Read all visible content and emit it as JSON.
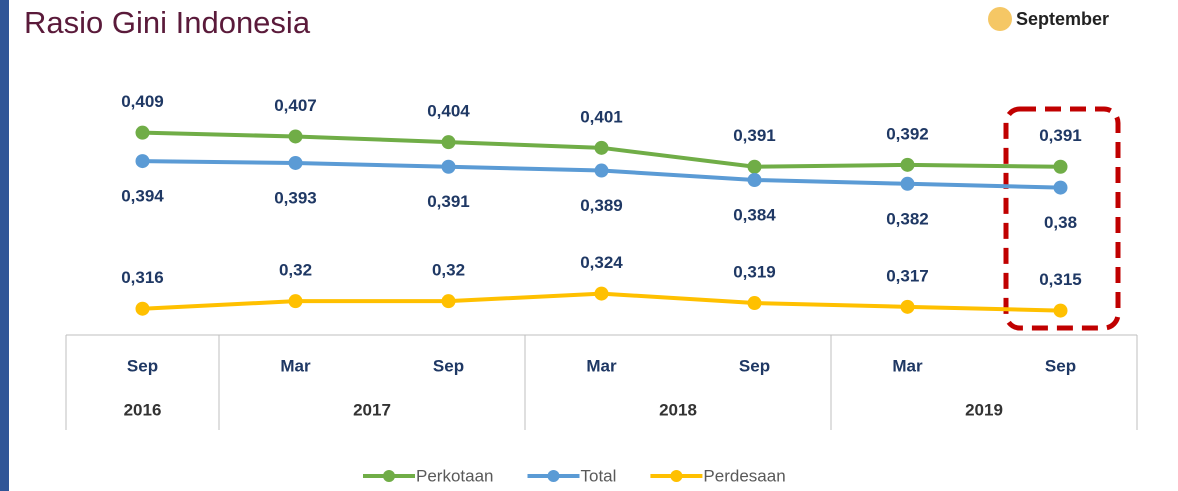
{
  "title": "Rasio Gini Indonesia",
  "period_legend": "September",
  "chart_data": {
    "type": "line",
    "categories": [
      "Sep",
      "Mar",
      "Sep",
      "Mar",
      "Sep",
      "Mar",
      "Sep"
    ],
    "years": [
      "2016",
      "2017",
      null,
      "2018",
      null,
      "2019",
      null
    ],
    "ylim": [
      0.3,
      0.44
    ],
    "series": [
      {
        "name": "Perkotaan",
        "color": "#70ad47",
        "label_position": "above",
        "values": [
          0.409,
          0.407,
          0.404,
          0.401,
          0.391,
          0.392,
          0.391
        ],
        "value_labels": [
          "0,409",
          "0,407",
          "0,404",
          "0,401",
          "0,391",
          "0,392",
          "0,391"
        ]
      },
      {
        "name": "Total",
        "color": "#5b9bd5",
        "label_position": "below",
        "values": [
          0.394,
          0.393,
          0.391,
          0.389,
          0.384,
          0.382,
          0.38
        ],
        "value_labels": [
          "0,394",
          "0,393",
          "0,391",
          "0,389",
          "0,384",
          "0,382",
          "0,38"
        ]
      },
      {
        "name": "Perdesaan",
        "color": "#ffc000",
        "label_position": "above",
        "values": [
          0.316,
          0.32,
          0.32,
          0.324,
          0.319,
          0.317,
          0.315
        ],
        "value_labels": [
          "0,316",
          "0,32",
          "0,32",
          "0,324",
          "0,319",
          "0,317",
          "0,315"
        ]
      }
    ]
  }
}
